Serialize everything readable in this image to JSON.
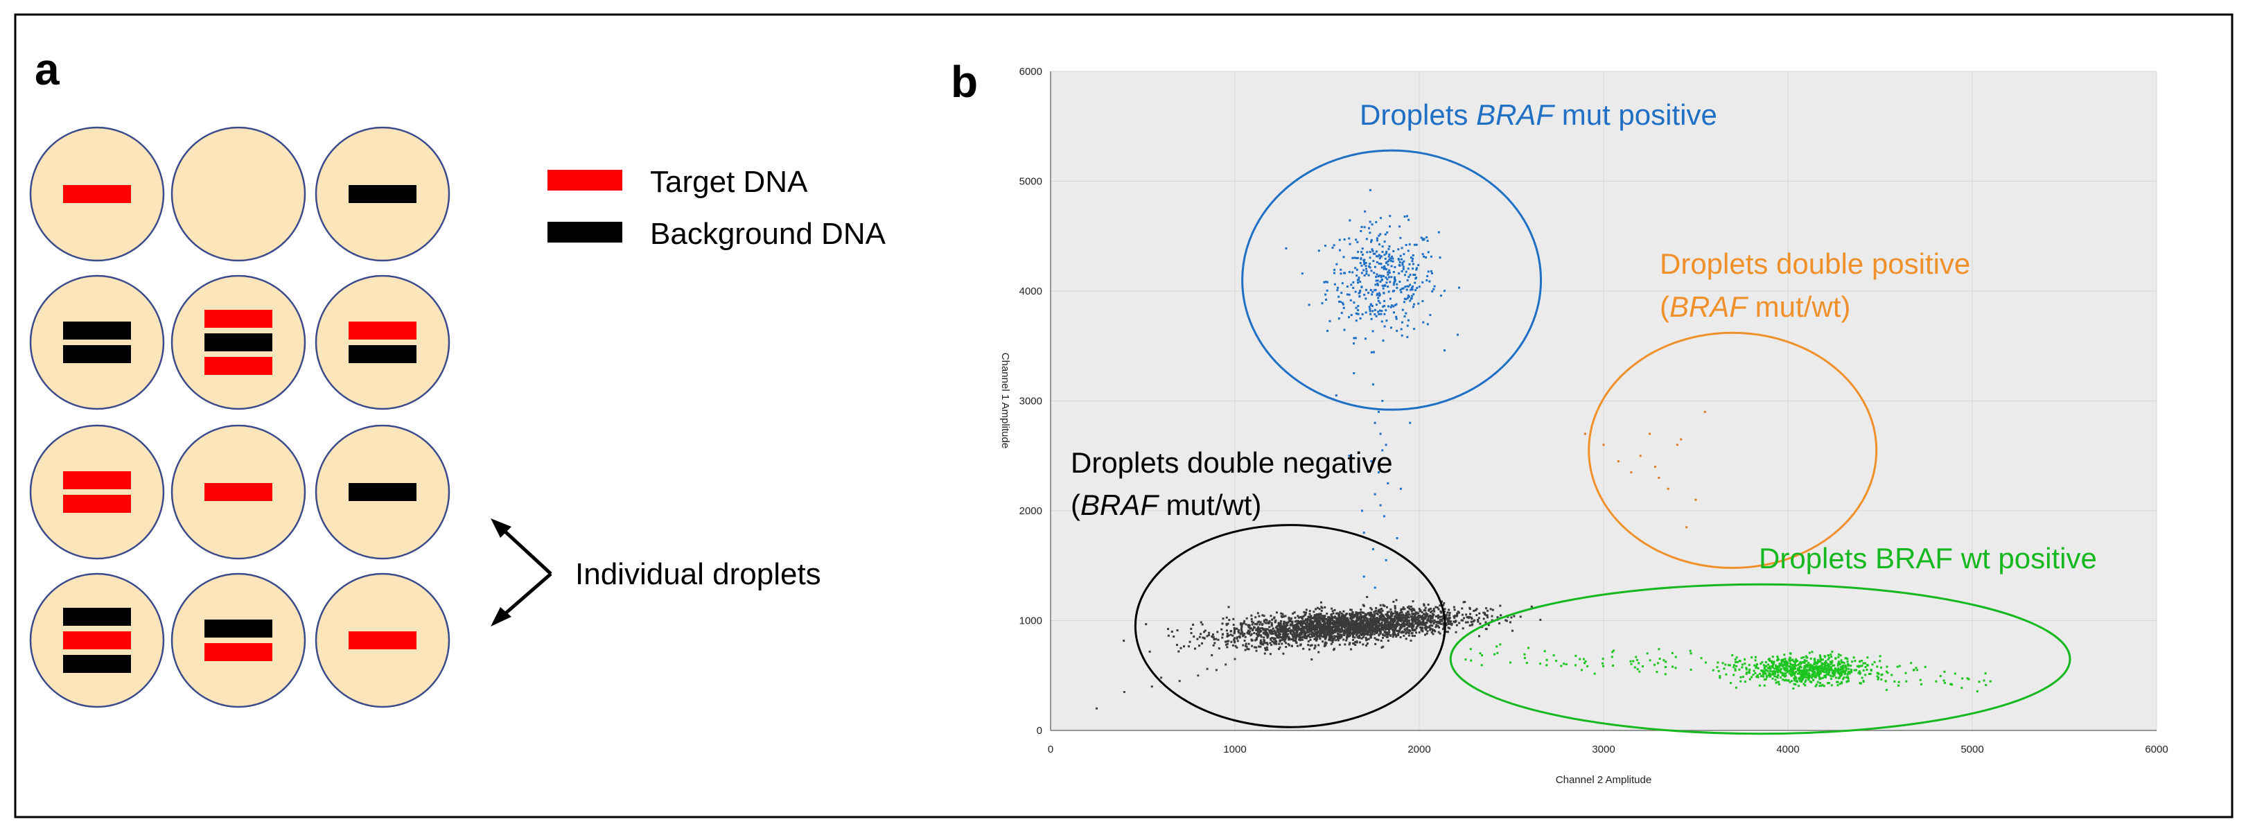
{
  "panel_a": {
    "letter": "a",
    "legend": [
      {
        "label": "Target DNA",
        "color": "#ff0000"
      },
      {
        "label": "Background DNA",
        "color": "#000000"
      }
    ],
    "arrow_label": "Individual droplets",
    "droplet_fill": "#fce5bb",
    "droplet_stroke": "#3b4a8a",
    "droplets": [
      [
        "T"
      ],
      [],
      [
        "B"
      ],
      [
        "B",
        "B"
      ],
      [
        "T",
        "B",
        "T"
      ],
      [
        "T",
        "B"
      ],
      [
        "T",
        "T"
      ],
      [
        "T"
      ],
      [
        "B"
      ],
      [
        "B",
        "T",
        "B"
      ],
      [
        "B",
        "T"
      ],
      [
        "T"
      ]
    ]
  },
  "panel_b": {
    "letter": "b",
    "clusters": [
      {
        "key": "mut",
        "label_parts": [
          "Droplets ",
          "BRAF",
          " mut positive"
        ],
        "color": "#1f6fc5"
      },
      {
        "key": "double_pos",
        "line1": "Droplets double positive",
        "line2_parts": [
          "(",
          "BRAF",
          " mut/wt)"
        ],
        "color": "#f0902a"
      },
      {
        "key": "double_neg",
        "line1": "Droplets double negative",
        "line2_parts": [
          "(",
          "BRAF",
          " mut/wt)"
        ],
        "color": "#000000"
      },
      {
        "key": "wt",
        "label": "Droplets BRAF wt positive",
        "color": "#15b81f"
      }
    ]
  },
  "chart_data": {
    "type": "scatter",
    "title": "",
    "xlabel": "Channel 2 Amplitude",
    "ylabel": "Channel 1 Amplitude",
    "xlim": [
      0,
      6000
    ],
    "ylim": [
      0,
      6000
    ],
    "xticks": [
      0,
      1000,
      2000,
      3000,
      4000,
      5000,
      6000
    ],
    "yticks": [
      0,
      1000,
      2000,
      3000,
      4000,
      5000,
      6000
    ],
    "plot_background": "#ebebeb",
    "grid": true,
    "series": [
      {
        "name": "BRAF mut positive",
        "color": "#1f6fc5",
        "center": [
          1800,
          4100
        ],
        "spread": [
          150,
          250
        ],
        "count": 420
      },
      {
        "name": "BRAF mut positive tail",
        "color": "#1f6fc5",
        "points": [
          [
            1750,
            3150
          ],
          [
            1800,
            3000
          ],
          [
            1780,
            2900
          ],
          [
            1760,
            2800
          ],
          [
            1790,
            2700
          ],
          [
            1820,
            2600
          ],
          [
            1800,
            2550
          ],
          [
            1740,
            2450
          ],
          [
            1780,
            2350
          ],
          [
            1830,
            2250
          ],
          [
            1760,
            2150
          ],
          [
            1790,
            2050
          ],
          [
            1810,
            1950
          ],
          [
            1700,
            1800
          ],
          [
            1750,
            1650
          ],
          [
            1820,
            1550
          ],
          [
            1700,
            1400
          ],
          [
            1760,
            1300
          ],
          [
            1620,
            2500
          ],
          [
            1900,
            2200
          ],
          [
            1950,
            2800
          ],
          [
            1550,
            3050
          ],
          [
            1880,
            1750
          ],
          [
            1690,
            2000
          ]
        ]
      },
      {
        "name": "Double positive (BRAF mut/wt)",
        "color": "#e07b20",
        "points": [
          [
            2900,
            2700
          ],
          [
            3000,
            2600
          ],
          [
            3080,
            2450
          ],
          [
            3150,
            2350
          ],
          [
            3200,
            2500
          ],
          [
            3250,
            2700
          ],
          [
            3280,
            2400
          ],
          [
            3300,
            2300
          ],
          [
            3350,
            2200
          ],
          [
            3400,
            2600
          ],
          [
            3420,
            2650
          ],
          [
            3500,
            2100
          ],
          [
            3550,
            2900
          ],
          [
            3450,
            1850
          ]
        ]
      },
      {
        "name": "Double negative (BRAF mut/wt)",
        "color": "#3a3a3a",
        "center": [
          1600,
          950
        ],
        "spread": [
          320,
          70
        ],
        "count": 2600,
        "rotation": 0.12
      },
      {
        "name": "Double negative sparse",
        "color": "#444444",
        "points": [
          [
            250,
            200
          ],
          [
            400,
            350
          ],
          [
            550,
            400
          ],
          [
            700,
            450
          ],
          [
            800,
            500
          ],
          [
            900,
            550
          ],
          [
            950,
            600
          ],
          [
            1000,
            650
          ],
          [
            2150,
            1050
          ],
          [
            2100,
            950
          ],
          [
            850,
            560
          ],
          [
            600,
            480
          ]
        ]
      },
      {
        "name": "BRAF wt positive",
        "color": "#1cc41f",
        "center": [
          4100,
          550
        ],
        "spread": [
          170,
          60
        ],
        "count": 700
      },
      {
        "name": "BRAF wt positive trail",
        "color": "#1cc41f",
        "range_x": [
          2200,
          5100
        ],
        "center_y": 700,
        "spread_y": 60,
        "count": 160
      }
    ],
    "ellipses": [
      {
        "name": "BRAF mut positive",
        "color": "#1f6fc5",
        "cx": 1850,
        "cy": 4100,
        "rx": 810,
        "ry": 1180
      },
      {
        "name": "Double positive",
        "color": "#f0902a",
        "cx": 3700,
        "cy": 2550,
        "rx": 780,
        "ry": 1070
      },
      {
        "name": "Double negative",
        "color": "#000000",
        "cx": 1300,
        "cy": 950,
        "rx": 840,
        "ry": 920
      },
      {
        "name": "BRAF wt positive",
        "color": "#15b81f",
        "cx": 3850,
        "cy": 650,
        "rx": 1680,
        "ry": 680
      }
    ]
  }
}
